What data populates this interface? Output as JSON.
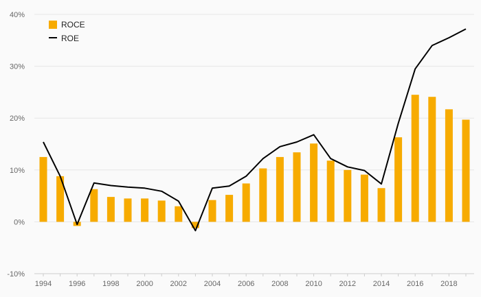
{
  "chart_data": {
    "type": "bar",
    "title": "",
    "xlabel": "",
    "ylabel": "",
    "ylim": [
      -10,
      40
    ],
    "yticks": [
      -10,
      0,
      10,
      20,
      30,
      40
    ],
    "ytick_labels": [
      "-10%",
      "0%",
      "10%",
      "20%",
      "30%",
      "40%"
    ],
    "xtick_labels": [
      "1994",
      "1996",
      "1998",
      "2000",
      "2002",
      "2004",
      "2006",
      "2008",
      "2010",
      "2012",
      "2014",
      "2016",
      "2018"
    ],
    "categories": [
      "1994",
      "1995",
      "1996",
      "1997",
      "1998",
      "1999",
      "2000",
      "2001",
      "2002",
      "2003",
      "2004",
      "2005",
      "2006",
      "2007",
      "2008",
      "2009",
      "2010",
      "2011",
      "2012",
      "2013",
      "2014",
      "2015",
      "2016",
      "2017",
      "2018",
      "2019"
    ],
    "grid": true,
    "legend_position": "top-left",
    "series": [
      {
        "name": "ROCE",
        "kind": "bar",
        "color": "#f7ab00",
        "values": [
          12.5,
          8.8,
          -0.8,
          6.3,
          4.8,
          4.5,
          4.5,
          4.1,
          3.0,
          -1.2,
          4.2,
          5.2,
          7.4,
          10.3,
          12.5,
          13.4,
          15.1,
          11.8,
          10.0,
          9.1,
          6.5,
          16.3,
          24.5,
          24.1,
          21.7,
          19.7
        ]
      },
      {
        "name": "ROE",
        "kind": "line",
        "color": "#000000",
        "values": [
          15.4,
          8.8,
          -0.5,
          7.5,
          7.0,
          6.7,
          6.5,
          5.9,
          4.0,
          -1.7,
          6.5,
          6.9,
          8.8,
          12.2,
          14.5,
          15.4,
          16.8,
          12.2,
          10.6,
          9.9,
          7.3,
          19.0,
          29.5,
          34.0,
          35.5,
          37.2
        ]
      }
    ]
  }
}
